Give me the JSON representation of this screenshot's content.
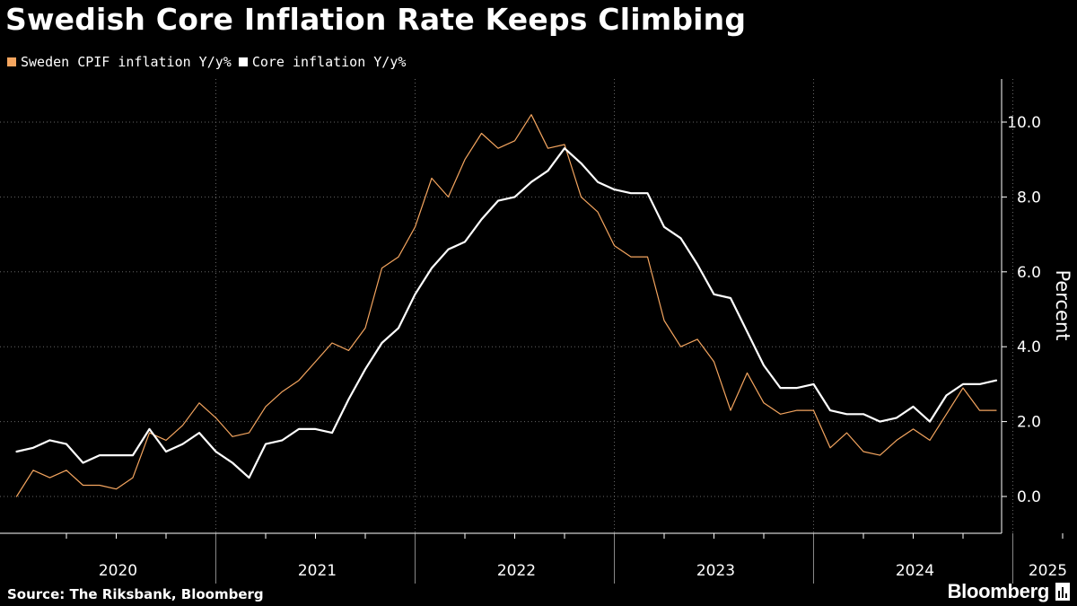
{
  "title": "Swedish Core Inflation Rate Keeps Climbing",
  "legend": [
    {
      "label": "Sweden CPIF inflation Y/y%",
      "color": "#f4a55f"
    },
    {
      "label": "Core inflation Y/y%",
      "color": "#ffffff"
    }
  ],
  "footer": {
    "source": "Source: The Riksbank, Bloomberg",
    "brand": "Bloomberg",
    "brand_icon": "bloomberg-terminal-icon"
  },
  "chart_data": {
    "type": "line",
    "x_ticks": [
      "2020",
      "2021",
      "2022",
      "2023",
      "2024",
      "2025"
    ],
    "ylabel": "Percent",
    "y_ticks": [
      "0.0",
      "2.0",
      "4.0",
      "6.0",
      "8.0",
      "10.0"
    ],
    "ylim": [
      -1.0,
      11.0
    ],
    "x_start": "2020-01",
    "x_range": [
      "2019-12",
      "2025-05"
    ],
    "grid": true,
    "legend_position": "top-left",
    "series": [
      {
        "name": "Sweden CPIF inflation Y/y%",
        "color": "#f4a55f",
        "values": [
          0.0,
          0.7,
          0.5,
          0.7,
          0.3,
          0.3,
          0.2,
          0.5,
          1.7,
          1.5,
          1.9,
          2.5,
          2.1,
          1.6,
          1.7,
          2.4,
          2.8,
          3.1,
          3.6,
          4.1,
          3.9,
          4.5,
          6.1,
          6.4,
          7.2,
          8.5,
          8.0,
          9.0,
          9.7,
          9.3,
          9.5,
          10.2,
          9.3,
          9.4,
          8.0,
          7.6,
          6.7,
          6.4,
          6.4,
          4.7,
          4.0,
          4.2,
          3.6,
          2.3,
          3.3,
          2.5,
          2.2,
          2.3,
          2.3,
          1.3,
          1.7,
          1.2,
          1.1,
          1.5,
          1.8,
          1.5,
          2.2,
          2.9,
          2.3,
          2.3
        ]
      },
      {
        "name": "Core inflation Y/y%",
        "color": "#ffffff",
        "values": [
          1.2,
          1.3,
          1.5,
          1.4,
          0.9,
          1.1,
          1.1,
          1.1,
          1.8,
          1.2,
          1.4,
          1.7,
          1.2,
          0.9,
          0.5,
          1.4,
          1.5,
          1.8,
          1.8,
          1.7,
          2.6,
          3.4,
          4.1,
          4.5,
          5.4,
          6.1,
          6.6,
          6.8,
          7.4,
          7.9,
          8.0,
          8.4,
          8.7,
          9.3,
          8.9,
          8.4,
          8.2,
          8.1,
          8.1,
          7.2,
          6.9,
          6.2,
          5.4,
          5.3,
          4.4,
          3.5,
          2.9,
          2.9,
          3.0,
          2.3,
          2.2,
          2.2,
          2.0,
          2.1,
          2.4,
          2.0,
          2.7,
          3.0,
          3.0,
          3.1
        ]
      }
    ]
  }
}
